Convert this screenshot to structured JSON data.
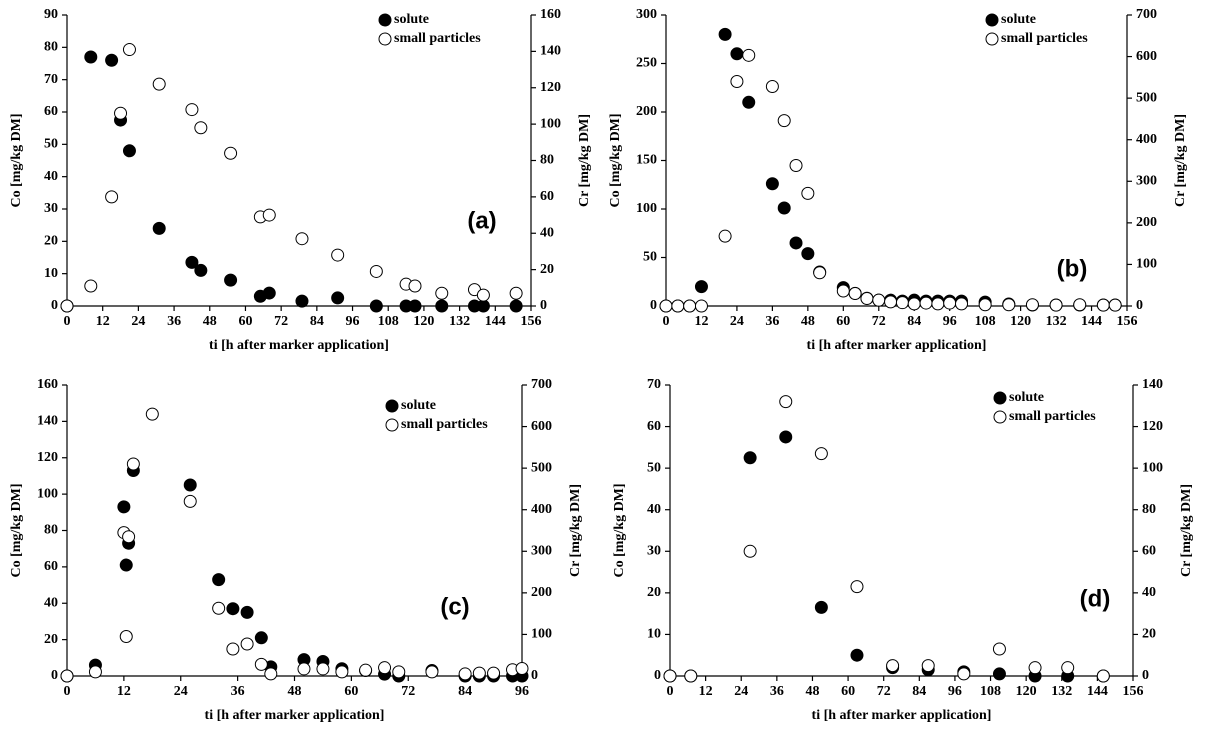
{
  "chart_data": [
    {
      "type": "scatter",
      "panel_label": "(a)",
      "x_label": "ti [h after marker application]",
      "y_label": "Co [mg/kg DM]",
      "y2_label": "Cr [mg/kg DM]",
      "xlim": [
        0,
        156
      ],
      "xticks": [
        0,
        12,
        24,
        36,
        48,
        60,
        72,
        84,
        96,
        108,
        120,
        132,
        144,
        156
      ],
      "ylim": [
        0,
        90
      ],
      "yticks": [
        0,
        10,
        20,
        30,
        40,
        50,
        60,
        70,
        80,
        90
      ],
      "y2lim": [
        0,
        160
      ],
      "y2ticks": [
        0,
        20,
        40,
        60,
        80,
        100,
        120,
        140,
        160
      ],
      "x": [
        0,
        8,
        15,
        18,
        21,
        31,
        42,
        45,
        55,
        65,
        68,
        79,
        91,
        104,
        114,
        117,
        126,
        137,
        140,
        151
      ],
      "series": [
        {
          "name": "solute",
          "color": "#000000",
          "values": [
            0,
            77,
            76,
            57.5,
            48,
            24,
            13.5,
            11,
            8,
            3,
            4,
            1.5,
            2.5,
            0,
            0,
            0,
            0,
            0,
            0,
            0
          ]
        },
        {
          "name": "small particles",
          "color": "#ffffff",
          "axis": "y2",
          "values": [
            0,
            11,
            60,
            106,
            141,
            122,
            108,
            98,
            84,
            49,
            50,
            37,
            28,
            19,
            12,
            11,
            7,
            9,
            6,
            7
          ]
        }
      ]
    },
    {
      "type": "scatter",
      "panel_label": "(b)",
      "x_label": "ti [h after marker application]",
      "y_label": "Co [mg/kg DM]",
      "y2_label": "Cr [mg/kg DM]",
      "xlim": [
        0,
        156
      ],
      "xticks": [
        0,
        12,
        24,
        36,
        48,
        60,
        72,
        84,
        96,
        108,
        120,
        132,
        144,
        156
      ],
      "ylim": [
        0,
        300
      ],
      "yticks": [
        0,
        50,
        100,
        150,
        200,
        250,
        300
      ],
      "y2lim": [
        0,
        700
      ],
      "y2ticks": [
        0,
        100,
        200,
        300,
        400,
        500,
        600,
        700
      ],
      "x": [
        0,
        4,
        8,
        12,
        20,
        24,
        28,
        36,
        40,
        44,
        48,
        52,
        60,
        64,
        68,
        72,
        76,
        80,
        84,
        88,
        92,
        96,
        100,
        108,
        116,
        124,
        132,
        140,
        148,
        152
      ],
      "series": [
        {
          "name": "solute",
          "color": "#000000",
          "values": [
            0,
            0,
            0,
            20,
            280,
            260,
            210,
            126,
            101,
            65,
            54,
            35,
            19,
            13,
            8,
            6,
            6,
            5,
            6,
            5,
            5,
            5,
            5,
            4,
            2,
            1,
            1,
            1,
            1,
            1
          ]
        },
        {
          "name": "small particles",
          "color": "#ffffff",
          "axis": "y2",
          "values": [
            0,
            0,
            0,
            0,
            168,
            540,
            603,
            528,
            446,
            338,
            271,
            80,
            36,
            30,
            18,
            14,
            10,
            8,
            5,
            7,
            5,
            7,
            5,
            3,
            3,
            3,
            2,
            3,
            2,
            2
          ]
        }
      ]
    },
    {
      "type": "scatter",
      "panel_label": "(c)",
      "x_label": "ti [h after marker application]",
      "y_label": "Co [mg/kg DM]",
      "y2_label": "Cr [mg/kg DM]",
      "xlim": [
        0,
        96
      ],
      "xticks": [
        0,
        12,
        24,
        36,
        48,
        60,
        72,
        84,
        96
      ],
      "ylim": [
        0,
        160
      ],
      "yticks": [
        0,
        20,
        40,
        60,
        80,
        100,
        120,
        140,
        160
      ],
      "y2lim": [
        0,
        700
      ],
      "y2ticks": [
        0,
        100,
        200,
        300,
        400,
        500,
        600,
        700
      ],
      "x": [
        0,
        6,
        12,
        12.5,
        13,
        14,
        18,
        26,
        32,
        35,
        38,
        41,
        43,
        50,
        54,
        58,
        63,
        67,
        70,
        77,
        84,
        87,
        90,
        94,
        96
      ],
      "series": [
        {
          "name": "solute",
          "color": "#000000",
          "values": [
            0,
            6,
            93,
            61,
            73,
            113,
            null,
            105,
            53,
            37,
            35,
            21,
            5,
            9,
            8,
            4,
            3,
            1,
            0,
            3,
            0,
            0,
            0,
            0,
            0
          ]
        },
        {
          "name": "small particles",
          "color": "#ffffff",
          "axis": "y2",
          "values": [
            0,
            10,
            345,
            95,
            335,
            510,
            630,
            420,
            163,
            65,
            77,
            28,
            5,
            17,
            17,
            10,
            14,
            20,
            10,
            10,
            5,
            7,
            7,
            15,
            18
          ]
        }
      ]
    },
    {
      "type": "scatter",
      "panel_label": "(d)",
      "x_label": "ti [h after marker application]",
      "y_label": "Co [mg/kg DM]",
      "y2_label": "Cr [mg/kg DM]",
      "xlim": [
        0,
        156
      ],
      "xticks": [
        0,
        12,
        24,
        36,
        48,
        60,
        72,
        84,
        96,
        108,
        120,
        132,
        144,
        156
      ],
      "ylim": [
        0,
        70
      ],
      "yticks": [
        0,
        10,
        20,
        30,
        40,
        50,
        60,
        70
      ],
      "y2lim": [
        0,
        140
      ],
      "y2ticks": [
        0,
        20,
        40,
        60,
        80,
        100,
        120,
        140
      ],
      "x": [
        0,
        7,
        27,
        39,
        51,
        63,
        75,
        87,
        99,
        111,
        123,
        134,
        146
      ],
      "series": [
        {
          "name": "solute",
          "color": "#000000",
          "values": [
            0,
            0,
            52.5,
            57.5,
            16.5,
            5,
            2,
            1.5,
            1,
            0.5,
            0,
            0,
            0
          ]
        },
        {
          "name": "small particles",
          "color": "#ffffff",
          "axis": "y2",
          "values": [
            0,
            0,
            60,
            132,
            107,
            43,
            5,
            5,
            1,
            13,
            4,
            4,
            0
          ]
        }
      ]
    }
  ]
}
